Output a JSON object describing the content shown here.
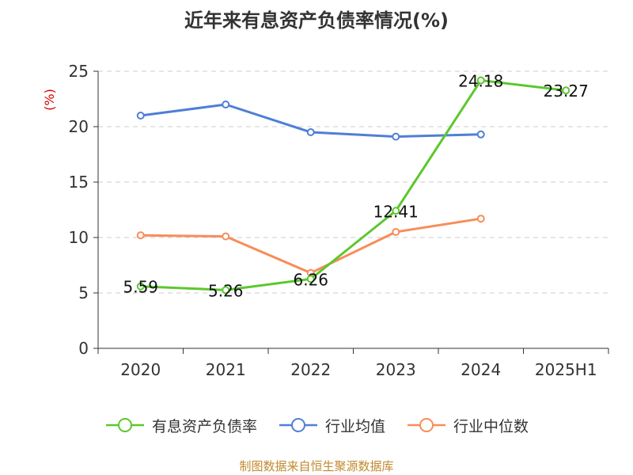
{
  "title": "近年来有息资产负债率情况(%)",
  "source_text": "制图数据来自恒生聚源数据库",
  "colors": {
    "debt_ratio": "#5cc72e",
    "industry_avg": "#4f7fd6",
    "industry_median": "#f78d5a",
    "grid": "#cccccc",
    "axis": "#333333",
    "ylabel": "#d40000",
    "source": "#c08a2c"
  },
  "chart_data": {
    "type": "line",
    "title": "近年来有息资产负债率情况(%)",
    "xlabel": "",
    "ylabel": "(%)",
    "ylim": [
      0,
      25
    ],
    "yticks": [
      "0",
      "5",
      "10",
      "15",
      "20",
      "25"
    ],
    "categories": [
      "2020",
      "2021",
      "2022",
      "2023",
      "2024",
      "2025H1"
    ],
    "grid": true,
    "legend_position": "bottom",
    "series": [
      {
        "name": "有息资产负债率",
        "color_key": "debt_ratio",
        "values": [
          5.59,
          5.26,
          6.26,
          12.41,
          24.18,
          23.27
        ],
        "labels": [
          "5.59",
          "5.26",
          "6.26",
          "12.41",
          "24.18",
          "23.27"
        ]
      },
      {
        "name": "行业均值",
        "color_key": "industry_avg",
        "values": [
          21.0,
          22.0,
          19.5,
          19.1,
          19.3,
          null
        ]
      },
      {
        "name": "行业中位数",
        "color_key": "industry_median",
        "values": [
          10.2,
          10.1,
          6.8,
          10.5,
          11.7,
          null
        ]
      }
    ]
  }
}
